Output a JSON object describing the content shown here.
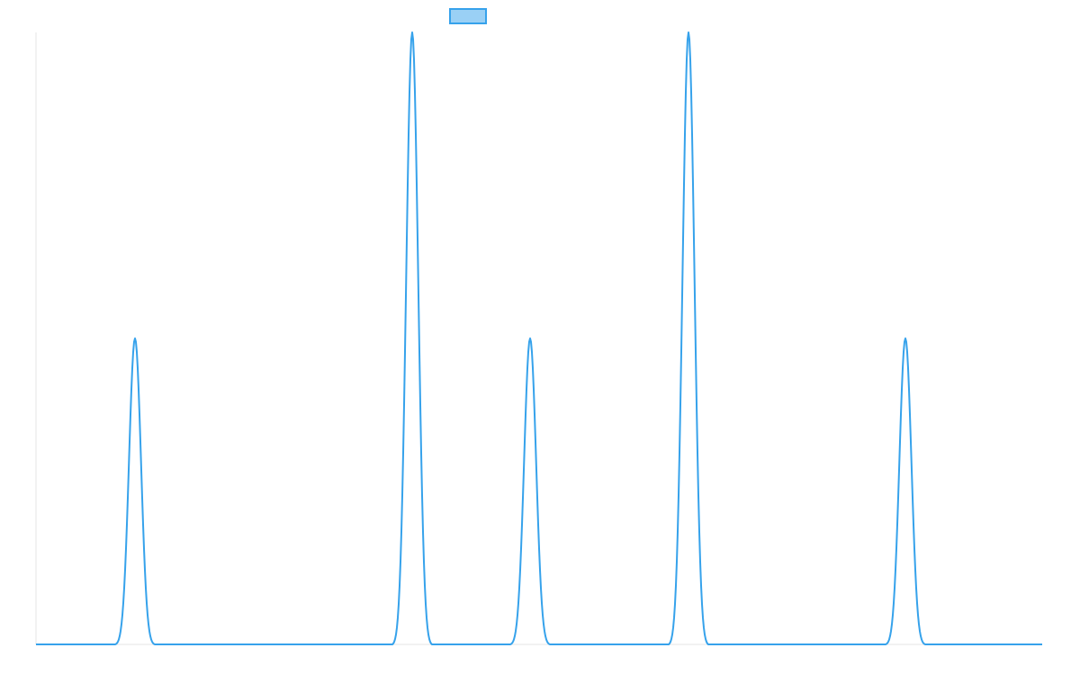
{
  "chart_data": {
    "type": "line",
    "title": "",
    "xlabel": "",
    "ylabel": "",
    "grid": false,
    "legend_position": "top-center",
    "xlim": [
      0,
      1118
    ],
    "ylim": [
      0,
      1
    ],
    "series": [
      {
        "name": "",
        "color": "#36a2eb",
        "legend_fill": "#9ad0f5",
        "peaks": [
          {
            "x": 110,
            "height": 0.5
          },
          {
            "x": 418,
            "height": 1.0
          },
          {
            "x": 549,
            "height": 0.5
          },
          {
            "x": 725,
            "height": 1.0
          },
          {
            "x": 966,
            "height": 0.5
          }
        ],
        "peak_halfwidth": 22
      }
    ]
  }
}
